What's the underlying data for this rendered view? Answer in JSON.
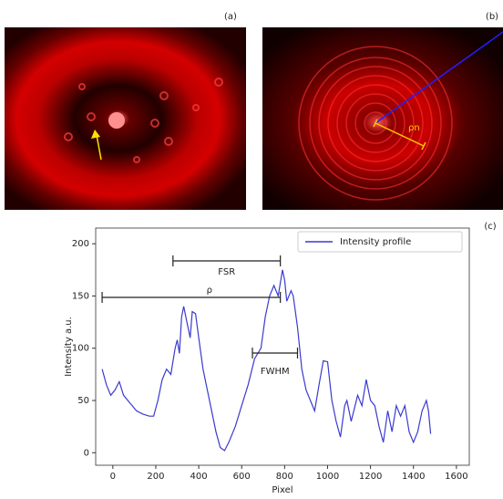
{
  "panels": {
    "a": {
      "label": "(a)"
    },
    "b": {
      "label": "(b)",
      "annotation": "ρn"
    },
    "c": {
      "label": "(c)"
    }
  },
  "chart_data": {
    "type": "line",
    "xlabel": "Pixel",
    "ylabel": "Intensity a.u.",
    "x": [
      -50,
      -30,
      -10,
      10,
      30,
      50,
      70,
      90,
      110,
      140,
      170,
      190,
      210,
      230,
      250,
      270,
      290,
      300,
      310,
      320,
      330,
      345,
      360,
      370,
      385,
      400,
      420,
      450,
      480,
      500,
      520,
      540,
      570,
      600,
      630,
      660,
      690,
      710,
      730,
      750,
      770,
      790,
      800,
      810,
      830,
      840,
      860,
      880,
      900,
      920,
      940,
      960,
      980,
      1000,
      1020,
      1040,
      1060,
      1080,
      1090,
      1110,
      1140,
      1160,
      1180,
      1200,
      1220,
      1240,
      1260,
      1280,
      1300,
      1320,
      1340,
      1360,
      1380,
      1400,
      1420,
      1440,
      1460,
      1470,
      1480
    ],
    "series": [
      {
        "name": "Intensity profile",
        "color": "#3a3ad0",
        "values": [
          80,
          65,
          55,
          60,
          68,
          55,
          50,
          45,
          40,
          37,
          35,
          35,
          50,
          70,
          80,
          75,
          100,
          108,
          95,
          130,
          140,
          125,
          110,
          135,
          133,
          110,
          80,
          50,
          20,
          5,
          2,
          10,
          25,
          45,
          65,
          90,
          100,
          130,
          150,
          160,
          150,
          175,
          165,
          145,
          155,
          150,
          120,
          80,
          60,
          50,
          40,
          65,
          88,
          87,
          50,
          30,
          15,
          45,
          50,
          30,
          55,
          45,
          70,
          50,
          45,
          25,
          10,
          40,
          20,
          45,
          35,
          45,
          20,
          10,
          20,
          40,
          50,
          40,
          18
        ]
      }
    ],
    "xlim": [
      -80,
      1660
    ],
    "ylim": [
      -12,
      215
    ],
    "xticks": [
      0,
      200,
      400,
      600,
      800,
      1000,
      1200,
      1400,
      1600
    ],
    "yticks": [
      0,
      50,
      100,
      150,
      200
    ],
    "legend": "upper right",
    "annotations": [
      "FSR",
      "ρ",
      "FWHM"
    ]
  }
}
